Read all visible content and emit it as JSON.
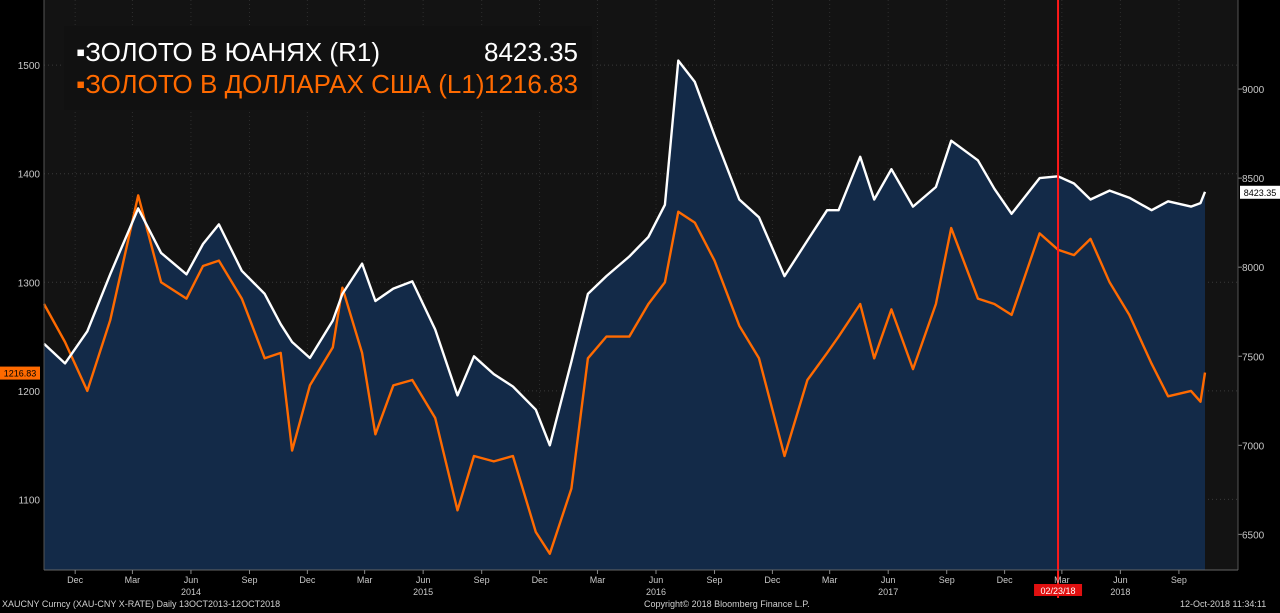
{
  "legend": {
    "r1_label": "▪ЗОЛОТО В ЮАНЯХ (R1)",
    "r1_value": "8423.35",
    "l1_label": "▪ЗОЛОТО В ДОЛЛАРАХ США (L1)",
    "l1_value": "1216.83"
  },
  "footer": {
    "left": "XAUCNY Curncy (XAU-CNY X-RATE)  Daily 13OCT2013-12OCT2018",
    "center": "Copyright© 2018 Bloomberg Finance L.P.",
    "right": "12-Oct-2018 11:34:11"
  },
  "colors": {
    "background": "#000000",
    "plot_background": "#131313",
    "area_fill": "#132a48",
    "cny_line": "#ffffff",
    "usd_line": "#ff6a00",
    "marker_line": "#ff1a1a",
    "axis_text": "#c8c8c8"
  },
  "chart_data": {
    "type": "line",
    "x_type": "date",
    "x_range": [
      "2013-10-13",
      "2018-10-12"
    ],
    "left_axis": {
      "ticks": [
        1100,
        1200,
        1300,
        1400,
        1500
      ],
      "range": [
        1035,
        1560
      ]
    },
    "right_axis": {
      "ticks": [
        6500,
        7000,
        7500,
        8000,
        8500,
        9000
      ],
      "range": [
        6300,
        9500
      ]
    },
    "x_month_ticks": [
      {
        "date": "2013-12-01",
        "label": "Dec"
      },
      {
        "date": "2014-03-01",
        "label": "Mar"
      },
      {
        "date": "2014-06-01",
        "label": "Jun"
      },
      {
        "date": "2014-09-01",
        "label": "Sep"
      },
      {
        "date": "2014-12-01",
        "label": "Dec"
      },
      {
        "date": "2015-03-01",
        "label": "Mar"
      },
      {
        "date": "2015-06-01",
        "label": "Jun"
      },
      {
        "date": "2015-09-01",
        "label": "Sep"
      },
      {
        "date": "2015-12-01",
        "label": "Dec"
      },
      {
        "date": "2016-03-01",
        "label": "Mar"
      },
      {
        "date": "2016-06-01",
        "label": "Jun"
      },
      {
        "date": "2016-09-01",
        "label": "Sep"
      },
      {
        "date": "2016-12-01",
        "label": "Dec"
      },
      {
        "date": "2017-03-01",
        "label": "Mar"
      },
      {
        "date": "2017-06-01",
        "label": "Jun"
      },
      {
        "date": "2017-09-01",
        "label": "Sep"
      },
      {
        "date": "2017-12-01",
        "label": "Dec"
      },
      {
        "date": "2018-03-01",
        "label": "Mar"
      },
      {
        "date": "2018-06-01",
        "label": "Jun"
      },
      {
        "date": "2018-09-01",
        "label": "Sep"
      }
    ],
    "x_year_labels": [
      {
        "date": "2014-06-01",
        "label": "2014"
      },
      {
        "date": "2015-06-01",
        "label": "2015"
      },
      {
        "date": "2016-06-01",
        "label": "2016"
      },
      {
        "date": "2017-06-01",
        "label": "2017"
      },
      {
        "date": "2018-06-01",
        "label": "2018"
      }
    ],
    "last_value_labels": {
      "left": "1216.83",
      "right": "8423.35"
    },
    "marker": {
      "date": "2018-02-23",
      "label": "02/23/18"
    },
    "series": [
      {
        "name": "ЗОЛОТО В ЮАНЯХ (R1)",
        "axis": "right",
        "x": [
          "2013-10-13",
          "2013-11-15",
          "2013-12-20",
          "2014-01-25",
          "2014-03-10",
          "2014-04-15",
          "2014-05-25",
          "2014-06-20",
          "2014-07-15",
          "2014-08-20",
          "2014-09-25",
          "2014-10-20",
          "2014-11-07",
          "2014-12-05",
          "2015-01-10",
          "2015-01-25",
          "2015-02-25",
          "2015-03-18",
          "2015-04-15",
          "2015-05-15",
          "2015-06-20",
          "2015-07-25",
          "2015-08-20",
          "2015-09-20",
          "2015-10-20",
          "2015-11-25",
          "2015-12-17",
          "2016-01-20",
          "2016-02-15",
          "2016-03-15",
          "2016-04-20",
          "2016-05-20",
          "2016-06-15",
          "2016-07-06",
          "2016-08-01",
          "2016-09-01",
          "2016-10-10",
          "2016-11-10",
          "2016-12-20",
          "2017-01-25",
          "2017-02-25",
          "2017-03-15",
          "2017-04-18",
          "2017-05-10",
          "2017-06-06",
          "2017-07-10",
          "2017-08-15",
          "2017-09-08",
          "2017-10-20",
          "2017-11-15",
          "2017-12-12",
          "2018-01-25",
          "2018-02-23",
          "2018-03-20",
          "2018-04-15",
          "2018-05-15",
          "2018-06-15",
          "2018-07-20",
          "2018-08-15",
          "2018-09-20",
          "2018-10-05",
          "2018-10-12"
        ],
        "values": [
          7570,
          7460,
          7640,
          7960,
          8330,
          8080,
          7960,
          8130,
          8240,
          7980,
          7850,
          7680,
          7580,
          7490,
          7700,
          7850,
          8020,
          7810,
          7880,
          7920,
          7650,
          7280,
          7500,
          7400,
          7330,
          7200,
          7000,
          7470,
          7850,
          7950,
          8060,
          8170,
          8350,
          9160,
          9040,
          8740,
          8380,
          8280,
          7950,
          8150,
          8320,
          8320,
          8620,
          8380,
          8550,
          8340,
          8450,
          8710,
          8600,
          8440,
          8300,
          8500,
          8510,
          8470,
          8380,
          8430,
          8390,
          8320,
          8370,
          8340,
          8360,
          8423.35
        ]
      },
      {
        "name": "ЗОЛОТО В ДОЛЛАРАХ США (L1)",
        "axis": "left",
        "x": [
          "2013-10-13",
          "2013-11-15",
          "2013-12-20",
          "2014-01-25",
          "2014-03-10",
          "2014-04-15",
          "2014-05-25",
          "2014-06-20",
          "2014-07-15",
          "2014-08-20",
          "2014-09-25",
          "2014-10-20",
          "2014-11-07",
          "2014-12-05",
          "2015-01-10",
          "2015-01-25",
          "2015-02-25",
          "2015-03-18",
          "2015-04-15",
          "2015-05-15",
          "2015-06-20",
          "2015-07-25",
          "2015-08-20",
          "2015-09-20",
          "2015-10-20",
          "2015-11-25",
          "2015-12-17",
          "2016-01-20",
          "2016-02-15",
          "2016-03-15",
          "2016-04-20",
          "2016-05-20",
          "2016-06-15",
          "2016-07-06",
          "2016-08-01",
          "2016-09-01",
          "2016-10-10",
          "2016-11-10",
          "2016-12-20",
          "2017-01-25",
          "2017-02-25",
          "2017-03-15",
          "2017-04-18",
          "2017-05-10",
          "2017-06-06",
          "2017-07-10",
          "2017-08-15",
          "2017-09-08",
          "2017-10-20",
          "2017-11-15",
          "2017-12-12",
          "2018-01-25",
          "2018-02-23",
          "2018-03-20",
          "2018-04-15",
          "2018-05-15",
          "2018-06-15",
          "2018-07-20",
          "2018-08-15",
          "2018-09-20",
          "2018-10-05",
          "2018-10-12"
        ],
        "values": [
          1280,
          1245,
          1200,
          1265,
          1380,
          1300,
          1285,
          1315,
          1320,
          1285,
          1230,
          1235,
          1145,
          1205,
          1240,
          1295,
          1235,
          1160,
          1205,
          1210,
          1175,
          1090,
          1140,
          1135,
          1140,
          1070,
          1050,
          1110,
          1230,
          1250,
          1250,
          1280,
          1300,
          1365,
          1355,
          1320,
          1260,
          1230,
          1140,
          1210,
          1235,
          1250,
          1280,
          1230,
          1275,
          1220,
          1280,
          1350,
          1285,
          1280,
          1270,
          1345,
          1330,
          1325,
          1340,
          1300,
          1270,
          1225,
          1195,
          1200,
          1190,
          1216.83
        ]
      }
    ]
  }
}
